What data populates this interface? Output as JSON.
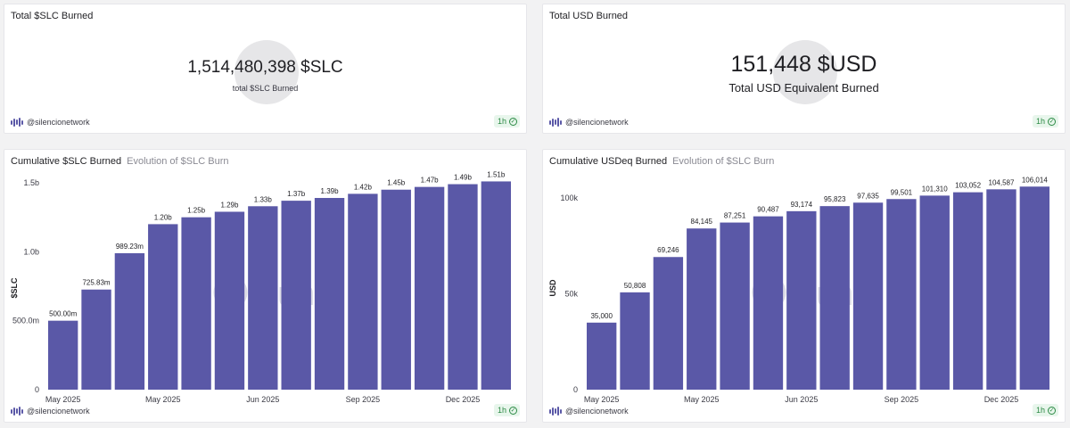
{
  "counters": [
    {
      "title": "Total $SLC Burned",
      "value": "1,514,480,398 $SLC",
      "subtitle": "total $SLC Burned",
      "footer_handle": "@silencionetwork",
      "refresh_badge": "1h"
    },
    {
      "title": "Total USD Burned",
      "value": "151,448 $USD",
      "subtitle": "Total USD Equivalent Burned",
      "footer_handle": "@silencionetwork",
      "refresh_badge": "1h"
    }
  ],
  "colors": {
    "bar": "#5a58a7",
    "watermark": "#dcdce6",
    "axis_text": "#3a3a44",
    "status_green": "#2c8a45"
  },
  "watermark_text": "Dune",
  "chart_data": [
    {
      "type": "bar",
      "title": "Cumulative $SLC Burned",
      "subtitle": "Evolution of $SLC Burn",
      "xlabel": "",
      "ylabel": "$SLC",
      "ylim": [
        0,
        1500000000
      ],
      "yticks": [
        0,
        500000000,
        1000000000,
        1500000000
      ],
      "yticklabels": [
        "0",
        "500.0m",
        "1.0b",
        "1.5b"
      ],
      "xticklabels": [
        {
          "index": 0,
          "label": "May 2025"
        },
        {
          "index": 3,
          "label": "May 2025"
        },
        {
          "index": 6,
          "label": "Jun 2025"
        },
        {
          "index": 9,
          "label": "Sep 2025"
        },
        {
          "index": 12,
          "label": "Dec 2025"
        }
      ],
      "values": [
        500000000,
        725830000,
        989230000,
        1200000000,
        1250000000,
        1290000000,
        1330000000,
        1370000000,
        1390000000,
        1420000000,
        1450000000,
        1470000000,
        1490000000,
        1510000000
      ],
      "data_labels": [
        "500.00m",
        "725.83m",
        "989.23m",
        "1.20b",
        "1.25b",
        "1.29b",
        "1.33b",
        "1.37b",
        "1.39b",
        "1.42b",
        "1.45b",
        "1.47b",
        "1.49b",
        "1.51b"
      ],
      "grid": false,
      "footer_handle": "@silencionetwork",
      "refresh_badge": "1h"
    },
    {
      "type": "bar",
      "title": "Cumulative USDeq Burned",
      "subtitle": "Evolution of $SLC Burn",
      "xlabel": "",
      "ylabel": "USD",
      "ylim": [
        0,
        108000
      ],
      "yticks": [
        0,
        50000,
        100000
      ],
      "yticklabels": [
        "0",
        "50k",
        "100k"
      ],
      "xticklabels": [
        {
          "index": 0,
          "label": "May 2025"
        },
        {
          "index": 3,
          "label": "May 2025"
        },
        {
          "index": 6,
          "label": "Jun 2025"
        },
        {
          "index": 9,
          "label": "Sep 2025"
        },
        {
          "index": 12,
          "label": "Dec 2025"
        }
      ],
      "values": [
        35000,
        50808,
        69246,
        84145,
        87251,
        90487,
        93174,
        95823,
        97635,
        99501,
        101310,
        103052,
        104587,
        106014
      ],
      "data_labels": [
        "35,000",
        "50,808",
        "69,246",
        "84,145",
        "87,251",
        "90,487",
        "93,174",
        "95,823",
        "97,635",
        "99,501",
        "101,310",
        "103,052",
        "104,587",
        "106,014"
      ],
      "grid": false,
      "footer_handle": "@silencionetwork",
      "refresh_badge": "1h"
    }
  ]
}
